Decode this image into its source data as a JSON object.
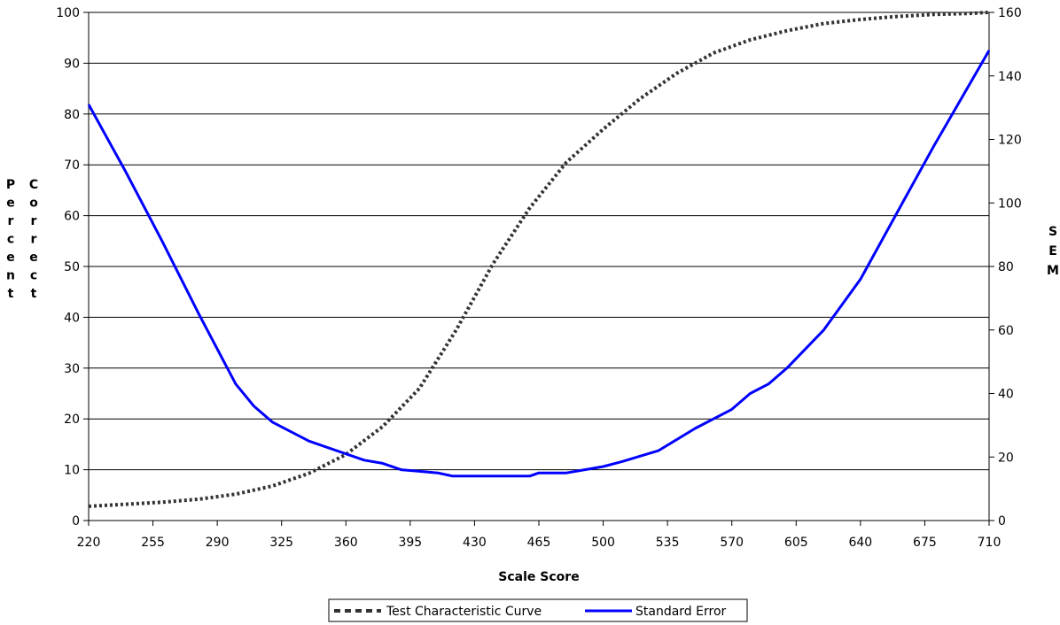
{
  "chart_data": {
    "type": "line",
    "xlabel": "Scale Score",
    "ylabel_left": "Percent Correct",
    "ylabel_right": "SEM",
    "xlim": [
      220,
      710
    ],
    "ylim_left": [
      0,
      100
    ],
    "ylim_right": [
      0,
      160
    ],
    "x_ticks": [
      220,
      255,
      290,
      325,
      360,
      395,
      430,
      465,
      500,
      535,
      570,
      605,
      640,
      675,
      710
    ],
    "y_ticks_left": [
      0,
      10,
      20,
      30,
      40,
      50,
      60,
      70,
      80,
      90,
      100
    ],
    "y_ticks_right": [
      0,
      20,
      40,
      60,
      80,
      100,
      120,
      140,
      160
    ],
    "grid": "horizontal",
    "legend_position": "bottom",
    "legend": [
      "Test Characteristic Curve",
      "Standard Error"
    ],
    "colors": {
      "tcc": "#333333",
      "sem": "#0000ff",
      "grid": "#000000"
    },
    "series": [
      {
        "name": "Test Characteristic Curve",
        "axis": "left",
        "style": "dashed",
        "x": [
          220,
          240,
          260,
          280,
          300,
          320,
          340,
          360,
          380,
          400,
          420,
          440,
          460,
          480,
          500,
          520,
          540,
          560,
          580,
          600,
          620,
          640,
          660,
          680,
          700,
          710
        ],
        "y": [
          2.8,
          3.2,
          3.6,
          4.2,
          5.2,
          6.8,
          9.3,
          13.0,
          18.5,
          26.0,
          37.5,
          50.5,
          61.5,
          70.5,
          77.0,
          83.0,
          88.0,
          92.0,
          94.6,
          96.4,
          97.8,
          98.6,
          99.2,
          99.6,
          99.8,
          100.0
        ]
      },
      {
        "name": "Standard Error",
        "axis": "right",
        "style": "solid",
        "x": [
          220,
          240,
          260,
          280,
          300,
          310,
          320,
          340,
          360,
          370,
          380,
          390,
          400,
          410,
          418,
          440,
          460,
          465,
          480,
          490,
          500,
          510,
          530,
          550,
          570,
          580,
          590,
          600,
          620,
          640,
          660,
          680,
          700,
          710
        ],
        "y": [
          131,
          110,
          88,
          65,
          43,
          36,
          31,
          25,
          21,
          19,
          18,
          16,
          15.5,
          15,
          14,
          14,
          14,
          15,
          15,
          16,
          17,
          18.5,
          22,
          29,
          35,
          40,
          43,
          48,
          60,
          76,
          97,
          118,
          138,
          148
        ]
      }
    ]
  }
}
